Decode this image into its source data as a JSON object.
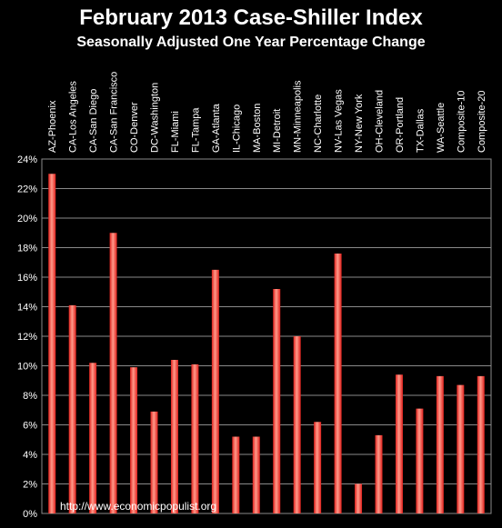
{
  "chart_data": {
    "type": "bar",
    "title": "February 2013 Case-Shiller Index",
    "subtitle": "Seasonally Adjusted One Year Percentage Change",
    "categories": [
      "AZ-Phoenix",
      "CA-Los Angeles",
      "CA-San Diego",
      "CA-San Francisco",
      "CO-Denver",
      "DC-Washington",
      "FL-Miami",
      "FL-Tampa",
      "GA-Atlanta",
      "IL-Chicago",
      "MA-Boston",
      "MI-Detroit",
      "MN-Minneapolis",
      "NC-Charlotte",
      "NV-Las Vegas",
      "NY-New York",
      "OH-Cleveland",
      "OR-Portland",
      "TX-Dallas",
      "WA-Seattle",
      "Composite-10",
      "Composite-20"
    ],
    "values": [
      23.0,
      14.1,
      10.2,
      19.0,
      9.9,
      6.9,
      10.4,
      10.1,
      16.5,
      5.2,
      5.2,
      15.2,
      12.0,
      6.2,
      17.6,
      2.0,
      5.3,
      9.4,
      7.1,
      9.3,
      8.7,
      9.3
    ],
    "ylim": [
      0,
      24
    ],
    "y_ticks": [
      "0%",
      "2%",
      "4%",
      "6%",
      "8%",
      "10%",
      "12%",
      "14%",
      "16%",
      "18%",
      "20%",
      "22%",
      "24%"
    ],
    "grid": true,
    "bar_color": "#e0201c",
    "bar_highlight": "#ff9a8a",
    "grid_color": "#8a8a8a",
    "annotation": "http://www.economicpopulist.org"
  }
}
